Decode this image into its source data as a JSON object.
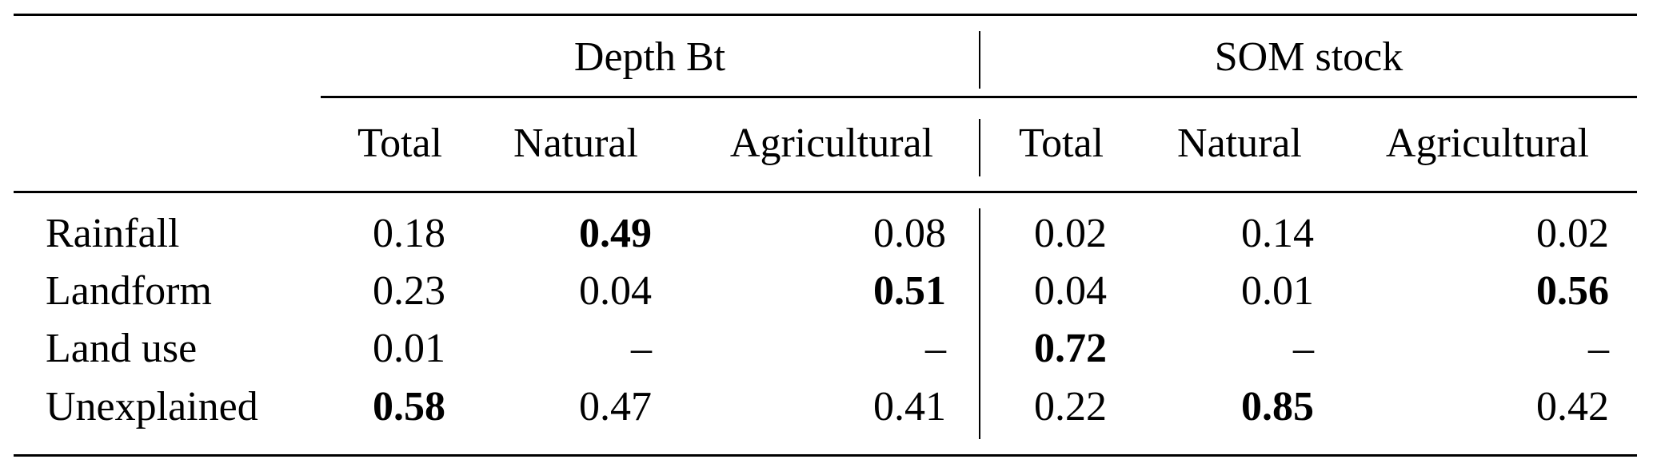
{
  "table": {
    "groups": [
      {
        "label": "Depth Bt"
      },
      {
        "label": "SOM stock"
      }
    ],
    "subheaders": [
      "Total",
      "Natural",
      "Agricultural",
      "Total",
      "Natural",
      "Agricultural"
    ],
    "rows": [
      {
        "label": "Rainfall",
        "cells": [
          {
            "v": "0.18",
            "bold": false
          },
          {
            "v": "0.49",
            "bold": true
          },
          {
            "v": "0.08",
            "bold": false
          },
          {
            "v": "0.02",
            "bold": false
          },
          {
            "v": "0.14",
            "bold": false
          },
          {
            "v": "0.02",
            "bold": false
          }
        ]
      },
      {
        "label": "Landform",
        "cells": [
          {
            "v": "0.23",
            "bold": false
          },
          {
            "v": "0.04",
            "bold": false
          },
          {
            "v": "0.51",
            "bold": true
          },
          {
            "v": "0.04",
            "bold": false
          },
          {
            "v": "0.01",
            "bold": false
          },
          {
            "v": "0.56",
            "bold": true
          }
        ]
      },
      {
        "label": "Land use",
        "cells": [
          {
            "v": "0.01",
            "bold": false
          },
          {
            "v": "–",
            "bold": false
          },
          {
            "v": "–",
            "bold": false
          },
          {
            "v": "0.72",
            "bold": true
          },
          {
            "v": "–",
            "bold": false
          },
          {
            "v": "–",
            "bold": false
          }
        ]
      },
      {
        "label": "Unexplained",
        "cells": [
          {
            "v": "0.58",
            "bold": true
          },
          {
            "v": "0.47",
            "bold": false
          },
          {
            "v": "0.41",
            "bold": false
          },
          {
            "v": "0.22",
            "bold": false
          },
          {
            "v": "0.85",
            "bold": true
          },
          {
            "v": "0.42",
            "bold": false
          }
        ]
      }
    ]
  }
}
